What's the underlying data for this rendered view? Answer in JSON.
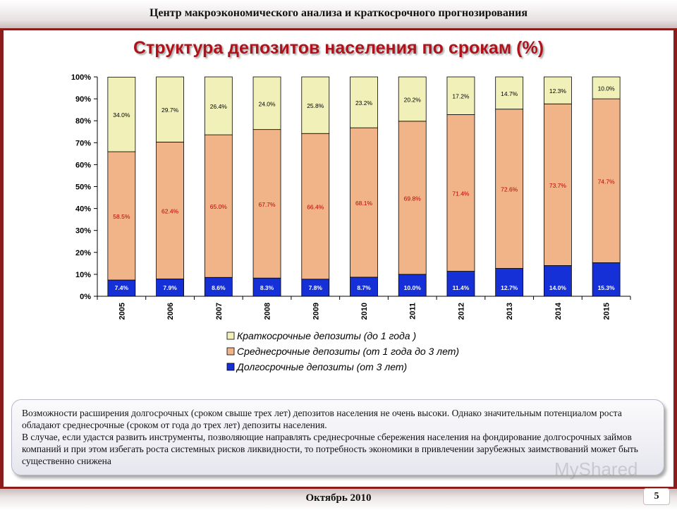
{
  "header": {
    "title": "Центр макроэкономического анализа и краткосрочного прогнозирования"
  },
  "slide": {
    "title": "Структура депозитов населения по срокам (%)"
  },
  "chart_data": {
    "type": "bar",
    "stacked": true,
    "categories": [
      "2005",
      "2006",
      "2007",
      "2008",
      "2009",
      "2010",
      "2011",
      "2012",
      "2013",
      "2014",
      "2015"
    ],
    "series": [
      {
        "name": "Долгосрочные депозиты (от 3 лет)",
        "color": "#1530d6",
        "label_color": "#ffffff",
        "values": [
          7.4,
          7.9,
          8.6,
          8.3,
          7.8,
          8.7,
          10.0,
          11.4,
          12.7,
          14.0,
          15.3
        ],
        "labels": [
          "7.4%",
          "7.9%",
          "8.6%",
          "8.3%",
          "7.8%",
          "8.7%",
          "10.0%",
          "11.4%",
          "12.7%",
          "14.0%",
          "15.3%"
        ]
      },
      {
        "name": "Среднесрочные депозиты (от 1 года до 3  лет)",
        "color": "#f0b488",
        "label_color": "#c00000",
        "values": [
          58.5,
          62.4,
          65.0,
          67.7,
          66.4,
          68.1,
          69.8,
          71.4,
          72.6,
          73.7,
          74.7
        ],
        "labels": [
          "58.5%",
          "62.4%",
          "65.0%",
          "67.7%",
          "66.4%",
          "68.1%",
          "69.8%",
          "71.4%",
          "72.6%",
          "73.7%",
          "74.7%"
        ]
      },
      {
        "name": "Краткосрочные депозиты (до 1 года )",
        "color": "#f0f0b8",
        "label_color": "#000000",
        "values": [
          34.0,
          29.7,
          26.4,
          24.0,
          25.8,
          23.2,
          20.2,
          17.2,
          14.7,
          12.3,
          10.0
        ],
        "labels": [
          "34.0%",
          "29.7%",
          "26.4%",
          "24.0%",
          "25.8%",
          "23.2%",
          "20.2%",
          "17.2%",
          "14.7%",
          "12.3%",
          "10.0%"
        ]
      }
    ],
    "legend_order": [
      2,
      1,
      0
    ],
    "y_ticks": [
      "0%",
      "10%",
      "20%",
      "30%",
      "40%",
      "50%",
      "60%",
      "70%",
      "80%",
      "90%",
      "100%"
    ],
    "ylim": [
      0,
      100
    ],
    "legend_position": "bottom",
    "grid": false
  },
  "note": {
    "paragraphs": [
      "Возможности расширения долгосрочных (сроком свыше трех лет) депозитов населения не очень высоки. Однако значительным потенциалом роста обладают среднесрочные (сроком от года до трех лет) депозиты населения.",
      "В случае, если удастся развить инструменты, позволяющие направлять среднесрочные сбережения населения на фондирование долгосрочных займов компаний и при этом избегать роста системных рисков ликвидности, то потребность экономики в привлечении зарубежных заимствований может быть существенно снижена"
    ]
  },
  "footer": {
    "date": "Октябрь 2010",
    "page": "5"
  },
  "watermark": "MyShared"
}
